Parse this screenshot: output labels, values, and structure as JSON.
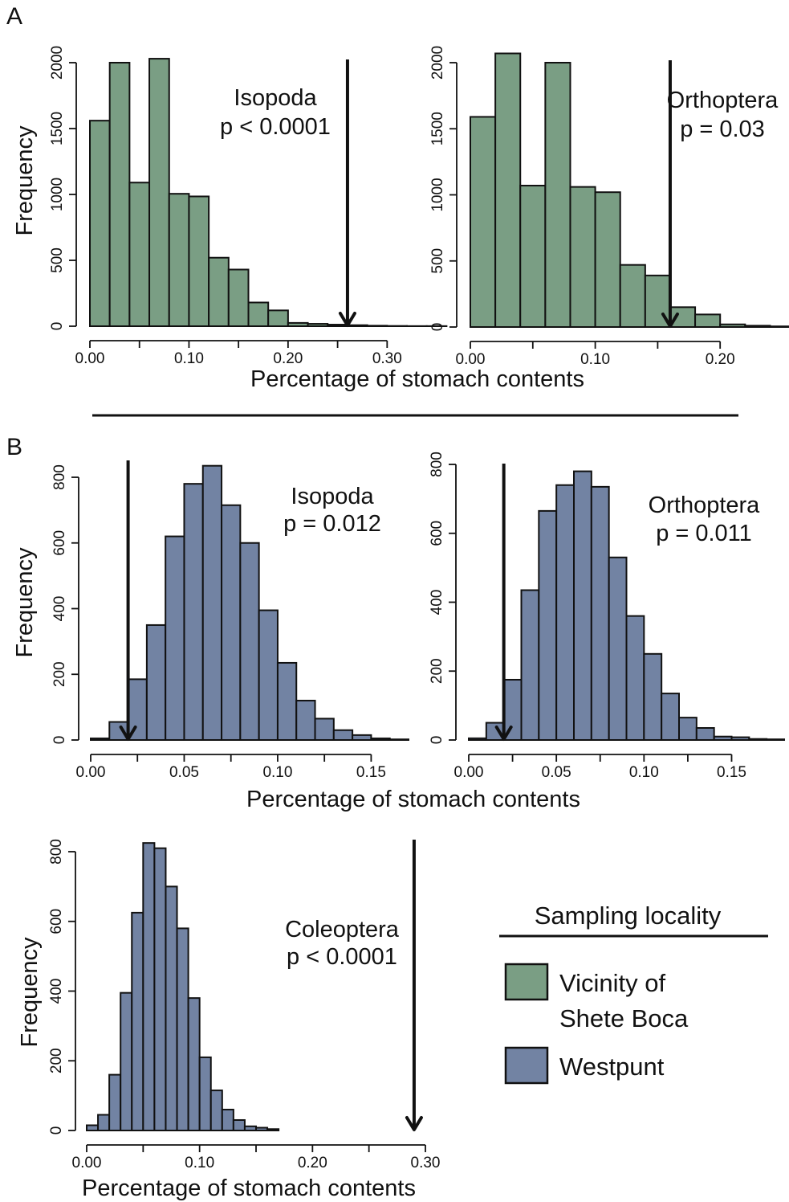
{
  "panel_labels": [
    "A",
    "B"
  ],
  "axis_label_x": "Percentage of stomach contents",
  "axis_label_y": "Frequency",
  "legend": {
    "title": "Sampling locality",
    "items": [
      {
        "line1": "Vicinity of",
        "line2": "Shete Boca",
        "color": "#7a9e84"
      },
      {
        "line1": "Westpunt",
        "line2": "",
        "color": "#7283a3"
      }
    ]
  },
  "chart_data": [
    {
      "type": "bar",
      "title_line1": "Isopoda",
      "title_line2": "p < 0.0001",
      "locality": "Vicinity of Shete Boca",
      "bin_start": 0.0,
      "bin_width": 0.02,
      "values": [
        1560,
        2000,
        1090,
        2030,
        1005,
        985,
        520,
        430,
        180,
        120,
        25,
        18,
        12,
        8,
        4,
        2,
        1,
        1,
        0
      ],
      "observed_value": 0.26,
      "xlim": [
        0,
        0.32
      ],
      "x_ticks": [
        "0.00",
        "0.10",
        "0.20",
        "0.30"
      ],
      "ylim": [
        0,
        2000
      ],
      "y_ticks": [
        "0",
        "500",
        "1000",
        "1500",
        "2000"
      ]
    },
    {
      "type": "bar",
      "title_line1": "Orthoptera",
      "title_line2": "p = 0.03",
      "locality": "Vicinity of Shete Boca",
      "bin_start": 0.0,
      "bin_width": 0.02,
      "values": [
        1590,
        2070,
        1070,
        2000,
        1060,
        1020,
        470,
        390,
        150,
        95,
        20,
        10,
        5,
        2
      ],
      "observed_value": 0.16,
      "xlim": [
        0,
        0.25
      ],
      "x_ticks": [
        "0.00",
        "0.10",
        "0.20"
      ],
      "ylim": [
        0,
        2000
      ],
      "y_ticks": [
        "0",
        "500",
        "1000",
        "1500",
        "2000"
      ]
    },
    {
      "type": "bar",
      "title_line1": "Isopoda",
      "title_line2": "p = 0.012",
      "locality": "Westpunt",
      "bin_start": 0.0,
      "bin_width": 0.01,
      "values": [
        5,
        55,
        185,
        350,
        620,
        780,
        835,
        715,
        600,
        395,
        235,
        120,
        65,
        30,
        15,
        5,
        2
      ],
      "observed_value": 0.02,
      "xlim": [
        0,
        0.17
      ],
      "x_ticks": [
        "0.00",
        "0.05",
        "0.10",
        "0.15"
      ],
      "ylim": [
        0,
        800
      ],
      "y_ticks": [
        "0",
        "200",
        "400",
        "600",
        "800"
      ]
    },
    {
      "type": "bar",
      "title_line1": "Orthoptera",
      "title_line2": "p = 0.011",
      "locality": "Westpunt",
      "bin_start": 0.0,
      "bin_width": 0.01,
      "values": [
        5,
        50,
        175,
        435,
        665,
        740,
        780,
        735,
        530,
        360,
        250,
        135,
        65,
        35,
        10,
        8,
        3,
        2
      ],
      "observed_value": 0.02,
      "xlim": [
        0,
        0.18
      ],
      "x_ticks": [
        "0.00",
        "0.05",
        "0.10",
        "0.15"
      ],
      "ylim": [
        0,
        800
      ],
      "y_ticks": [
        "0",
        "200",
        "400",
        "600",
        "800"
      ]
    },
    {
      "type": "bar",
      "title_line1": "Coleoptera",
      "title_line2": "p < 0.0001",
      "locality": "Westpunt",
      "bin_start": 0.0,
      "bin_width": 0.01,
      "values": [
        15,
        45,
        160,
        395,
        625,
        825,
        810,
        700,
        580,
        380,
        210,
        115,
        60,
        30,
        12,
        8,
        4
      ],
      "observed_value": 0.29,
      "xlim": [
        0,
        0.3
      ],
      "x_ticks": [
        "0.00",
        "0.10",
        "0.20",
        "0.30"
      ],
      "ylim": [
        0,
        800
      ],
      "y_ticks": [
        "0",
        "200",
        "400",
        "600",
        "800"
      ]
    }
  ]
}
